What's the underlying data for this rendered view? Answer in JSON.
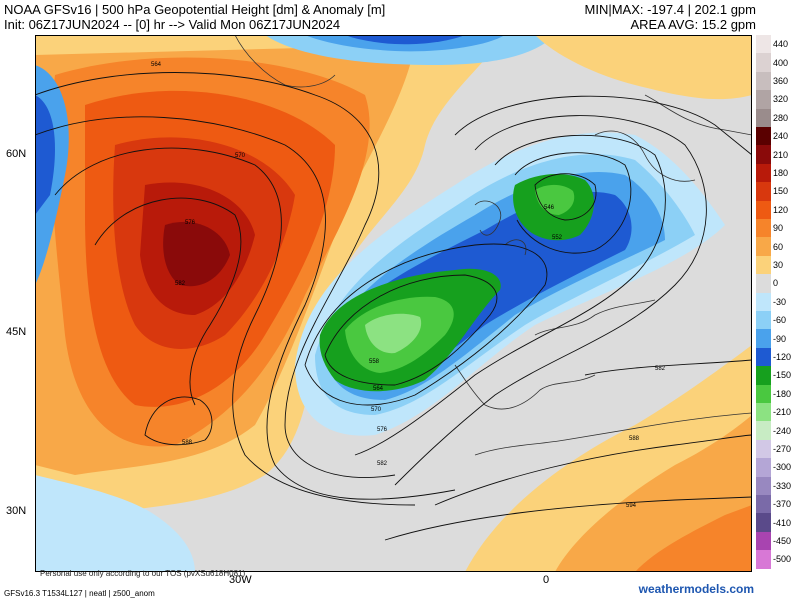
{
  "header": {
    "title": "NOAA GFSv16 | 500 hPa Geopotential Height [dm] & Anomaly [m]",
    "init_line": "Init: 06Z17JUN2024 -- [0] hr --> Valid Mon 06Z17JUN2024",
    "minmax": "MIN|MAX: -197.4 | 202.1 gpm",
    "area_avg": "AREA AVG: 15.2 gpm"
  },
  "axes": {
    "lat_labels": [
      "60N",
      "45N",
      "30N"
    ],
    "lon_labels": [
      "30W",
      "0"
    ]
  },
  "contour_labels": [
    "564",
    "570",
    "576",
    "582",
    "588",
    "546",
    "552",
    "558",
    "564",
    "570",
    "576",
    "582",
    "588",
    "594",
    "582"
  ],
  "colorbar": {
    "labels": [
      "440",
      "400",
      "360",
      "320",
      "280",
      "240",
      "210",
      "180",
      "150",
      "120",
      "90",
      "60",
      "30",
      "0",
      "-30",
      "-60",
      "-90",
      "-120",
      "-150",
      "-180",
      "-210",
      "-240",
      "-270",
      "-300",
      "-330",
      "-370",
      "-410",
      "-450",
      "-500"
    ],
    "colors": [
      "#eee6e6",
      "#dcd2d2",
      "#c8bebe",
      "#b0a4a4",
      "#9a8c8c",
      "#5a0000",
      "#8a0a0a",
      "#b81a0a",
      "#d8380e",
      "#ee5a12",
      "#f6842a",
      "#f8a848",
      "#fbd27a",
      "#dcdcdc",
      "#bfe6fb",
      "#8cd0f6",
      "#4aa2ec",
      "#1e5ad2",
      "#16a01e",
      "#4ac840",
      "#8ce282",
      "#c8ecc4",
      "#d2c8e6",
      "#b4a6d6",
      "#9888c0",
      "#7a6aa8",
      "#5a4a8a",
      "#a844b0",
      "#d878d6"
    ]
  },
  "footer": {
    "model_info": "GFSv16.3 T1534L127 | neatl | z500_anom",
    "personal_use": "Personal use only according to our TOS (pvXSu618H081)",
    "brand": "weathermodels.com"
  }
}
